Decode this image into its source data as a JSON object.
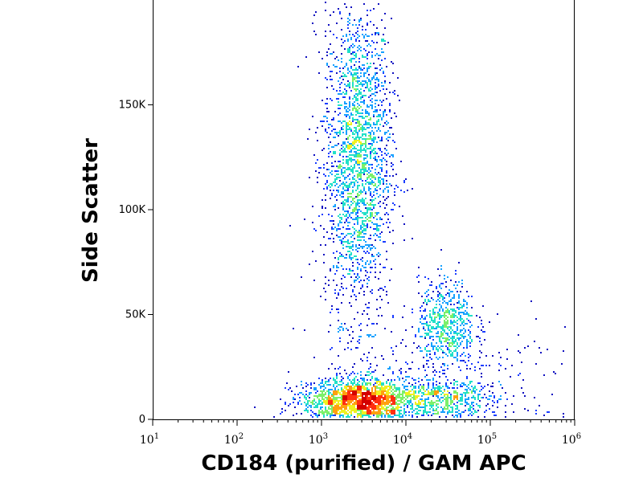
{
  "chart_data": {
    "type": "scatter",
    "subtype": "density-dot-plot",
    "title": "",
    "xlabel": "CD184 (purified) / GAM APC",
    "ylabel": "Side Scatter",
    "x_scale": "log",
    "xlim": [
      10,
      1000000
    ],
    "ylim": [
      0,
      200000
    ],
    "x_ticks": [
      {
        "base": "10",
        "exp": "1",
        "value": 10
      },
      {
        "base": "10",
        "exp": "2",
        "value": 100
      },
      {
        "base": "10",
        "exp": "3",
        "value": 1000
      },
      {
        "base": "10",
        "exp": "4",
        "value": 10000
      },
      {
        "base": "10",
        "exp": "5",
        "value": 100000
      },
      {
        "base": "10",
        "exp": "6",
        "value": 1000000
      }
    ],
    "y_ticks": [
      {
        "label": "0",
        "value": 0
      },
      {
        "label": "50K",
        "value": 50000
      },
      {
        "label": "100K",
        "value": 100000
      },
      {
        "label": "150K",
        "value": 150000
      }
    ],
    "grid": false,
    "density_colors": [
      "#1010c0",
      "#1a3cff",
      "#16a0ff",
      "#22e0c8",
      "#7cf06a",
      "#f0f020",
      "#ffa010",
      "#ff3010",
      "#d40000"
    ],
    "populations": [
      {
        "x_center": 2600,
        "x_spread_log10": 0.2,
        "y_center": 125000,
        "y_spread": 38000,
        "count": 2300
      },
      {
        "x_center": 30000,
        "x_spread_log10": 0.17,
        "y_center": 45000,
        "y_spread": 11000,
        "count": 650
      },
      {
        "x_center": 2900,
        "x_spread_log10": 0.34,
        "y_center": 10000,
        "y_spread": 5000,
        "count": 1900
      },
      {
        "x_center": 28000,
        "x_spread_log10": 0.3,
        "y_center": 10000,
        "y_spread": 4500,
        "count": 450
      },
      {
        "x_center": 30000,
        "x_spread_log10": 0.8,
        "y_center": 20000,
        "y_spread": 16000,
        "count": 300
      }
    ]
  }
}
